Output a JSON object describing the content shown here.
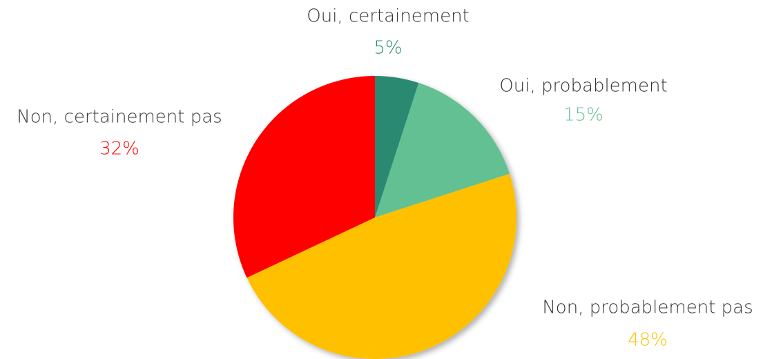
{
  "chart_data": {
    "type": "pie",
    "categories": [
      "Oui, certainement",
      "Oui, probablement",
      "Non, probablement pas",
      "Non, certainement pas"
    ],
    "values": [
      5,
      15,
      48,
      32
    ],
    "value_labels": [
      "5%",
      "15%",
      "48%",
      "32%"
    ],
    "colors": [
      "#2a8a71",
      "#63c093",
      "#ffc000",
      "#ff0000"
    ]
  }
}
